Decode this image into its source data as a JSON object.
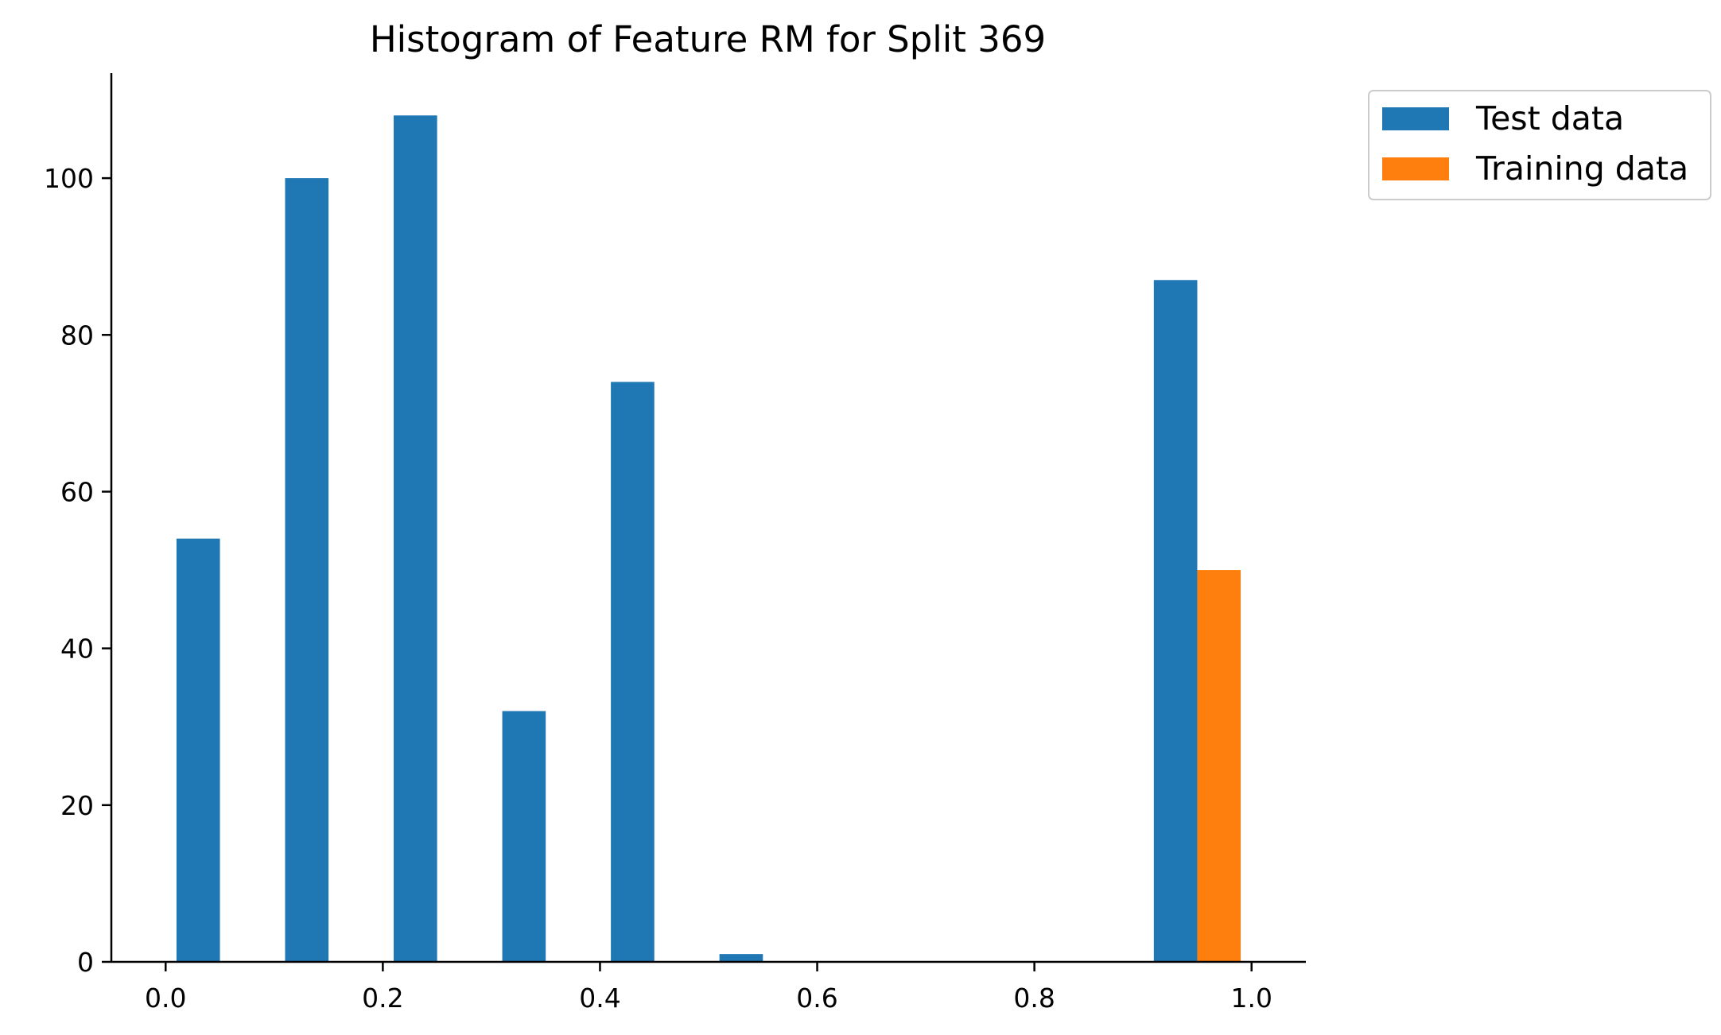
{
  "chart_data": {
    "type": "bar",
    "title": "Histogram of Feature RM for Split 369",
    "xlabel": "",
    "ylabel": "",
    "xlim": [
      -0.05,
      1.05
    ],
    "ylim": [
      0,
      113.4
    ],
    "x_ticks": [
      "0.0",
      "0.2",
      "0.4",
      "0.6",
      "0.8",
      "1.0"
    ],
    "x_tick_values": [
      0.0,
      0.2,
      0.4,
      0.6,
      0.8,
      1.0
    ],
    "y_ticks": [
      "0",
      "20",
      "40",
      "60",
      "80",
      "100"
    ],
    "y_tick_values": [
      0,
      20,
      40,
      60,
      80,
      100
    ],
    "bin_edges": [
      0.0,
      0.1,
      0.2,
      0.3,
      0.4,
      0.5,
      0.6,
      0.7,
      0.8,
      0.9,
      1.0
    ],
    "series": [
      {
        "name": "Test data",
        "color": "#1f77b4",
        "values": [
          54,
          100,
          108,
          32,
          74,
          1,
          0,
          0,
          0,
          87
        ]
      },
      {
        "name": "Training data",
        "color": "#ff7f0e",
        "values": [
          0,
          0,
          0,
          0,
          0,
          0,
          0,
          0,
          0,
          50
        ]
      }
    ],
    "legend": "outside-top-right",
    "grid": false
  }
}
